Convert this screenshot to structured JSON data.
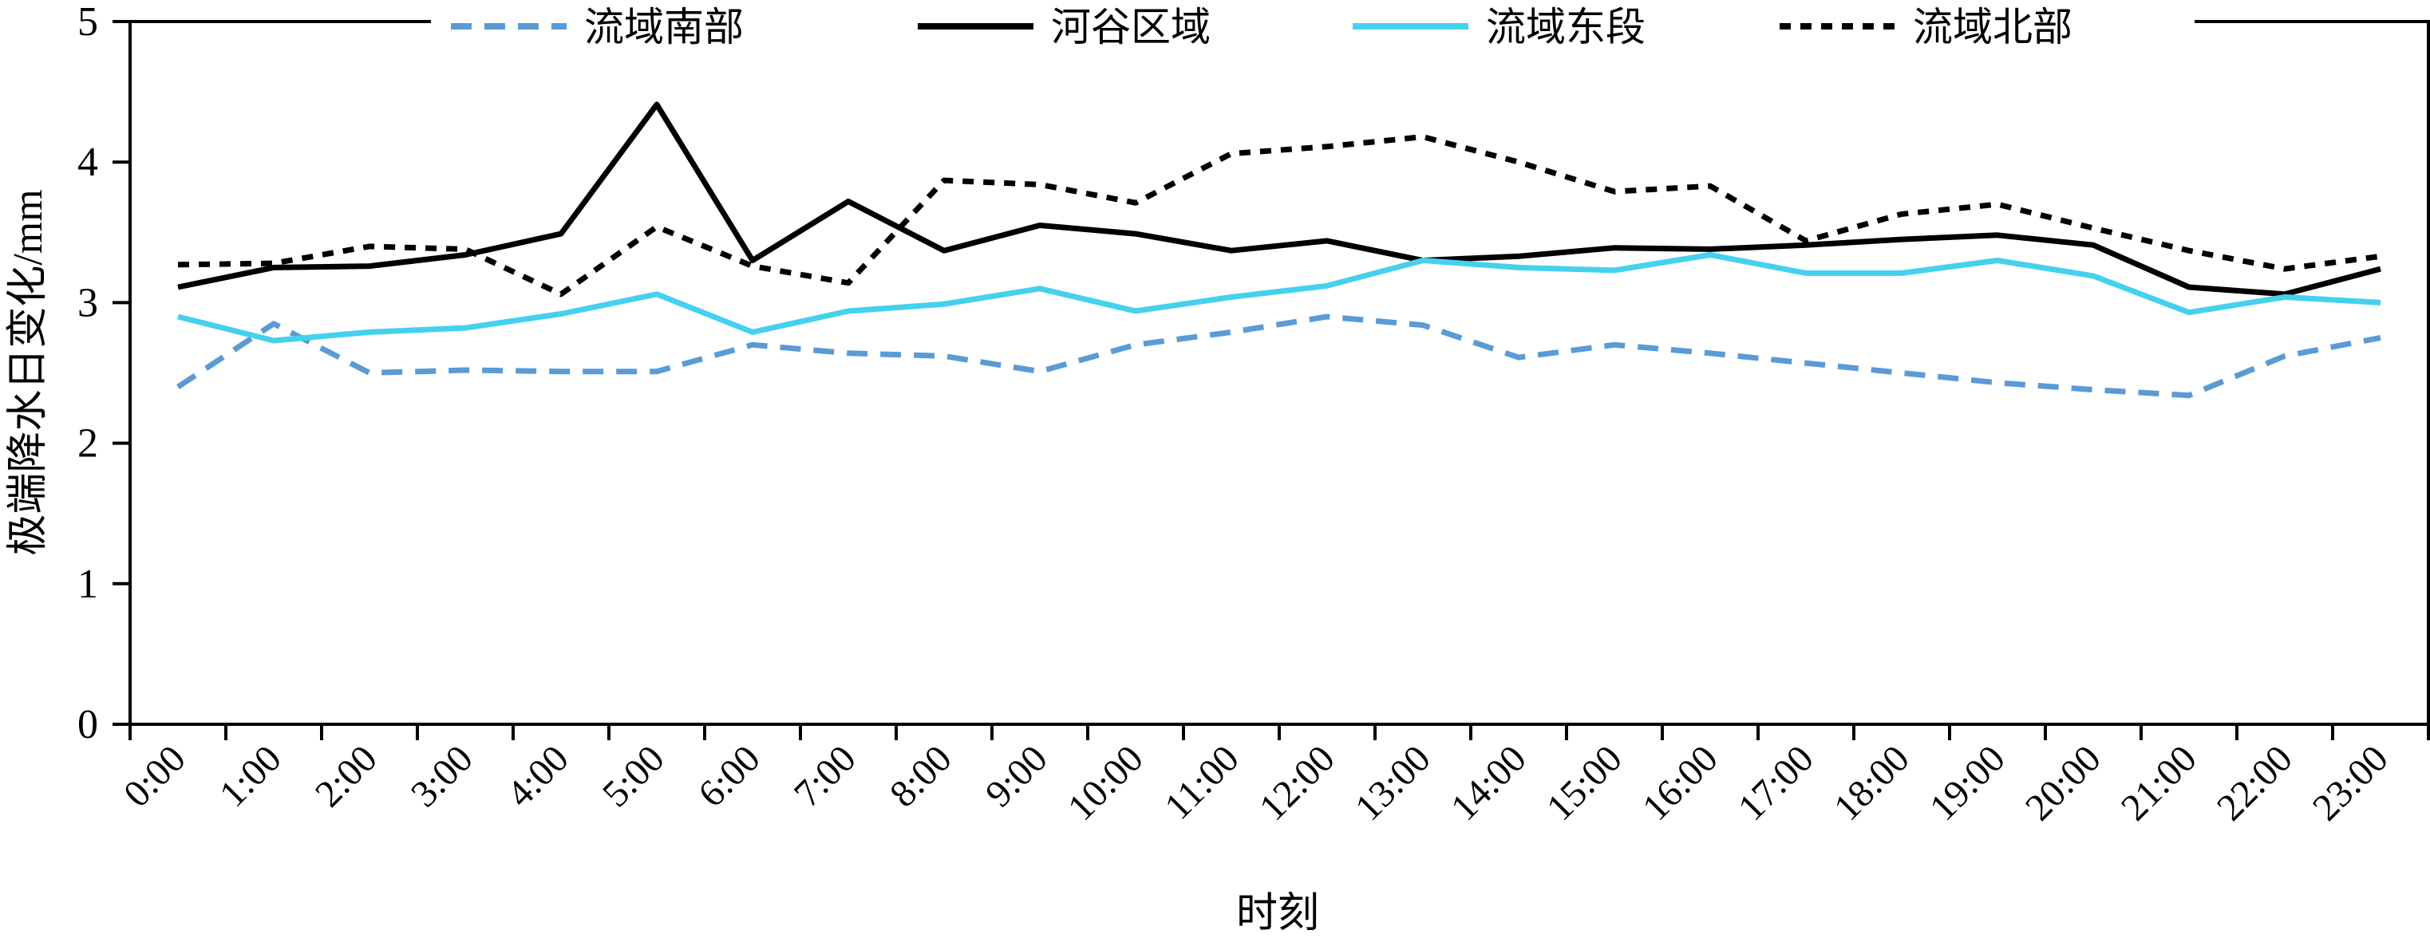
{
  "chart_data": {
    "type": "line",
    "title": "",
    "xlabel": "时刻",
    "ylabel": "极端降水日变化/mm",
    "x": [
      "0:00",
      "1:00",
      "2:00",
      "3:00",
      "4:00",
      "5:00",
      "6:00",
      "7:00",
      "8:00",
      "9:00",
      "10:00",
      "11:00",
      "12:00",
      "13:00",
      "14:00",
      "15:00",
      "16:00",
      "17:00",
      "18:00",
      "19:00",
      "20:00",
      "21:00",
      "22:00",
      "23:00"
    ],
    "ylim": [
      0,
      5
    ],
    "y_ticks": [
      0,
      1,
      2,
      3,
      4,
      5
    ],
    "grid": false,
    "legend_position": "top",
    "axis_color": "#000000",
    "series": [
      {
        "name": "流域南部",
        "color": "#5B9BD5",
        "line_style": "dashed",
        "values": [
          2.4,
          2.85,
          2.5,
          2.52,
          2.51,
          2.51,
          2.7,
          2.64,
          2.62,
          2.51,
          2.7,
          2.79,
          2.9,
          2.84,
          2.61,
          2.7,
          2.64,
          2.57,
          2.5,
          2.43,
          2.38,
          2.34,
          2.62,
          2.75
        ]
      },
      {
        "name": "河谷区域",
        "color": "#000000",
        "line_style": "solid",
        "values": [
          3.11,
          3.25,
          3.26,
          3.34,
          3.49,
          4.41,
          3.3,
          3.72,
          3.37,
          3.55,
          3.49,
          3.37,
          3.44,
          3.3,
          3.33,
          3.39,
          3.38,
          3.41,
          3.45,
          3.48,
          3.41,
          3.11,
          3.06,
          3.24
        ]
      },
      {
        "name": "流域东段",
        "color": "#45D1EE",
        "line_style": "solid",
        "values": [
          2.9,
          2.73,
          2.79,
          2.82,
          2.92,
          3.06,
          2.79,
          2.94,
          2.99,
          3.1,
          2.94,
          3.04,
          3.12,
          3.3,
          3.25,
          3.23,
          3.34,
          3.21,
          3.21,
          3.3,
          3.19,
          2.93,
          3.04,
          3.0
        ]
      },
      {
        "name": "流域北部",
        "color": "#000000",
        "line_style": "dotted",
        "values": [
          3.27,
          3.28,
          3.4,
          3.38,
          3.06,
          3.54,
          3.26,
          3.14,
          3.87,
          3.84,
          3.71,
          4.06,
          4.11,
          4.18,
          4.0,
          3.79,
          3.83,
          3.44,
          3.63,
          3.7,
          3.53,
          3.37,
          3.24,
          3.33
        ]
      }
    ]
  }
}
